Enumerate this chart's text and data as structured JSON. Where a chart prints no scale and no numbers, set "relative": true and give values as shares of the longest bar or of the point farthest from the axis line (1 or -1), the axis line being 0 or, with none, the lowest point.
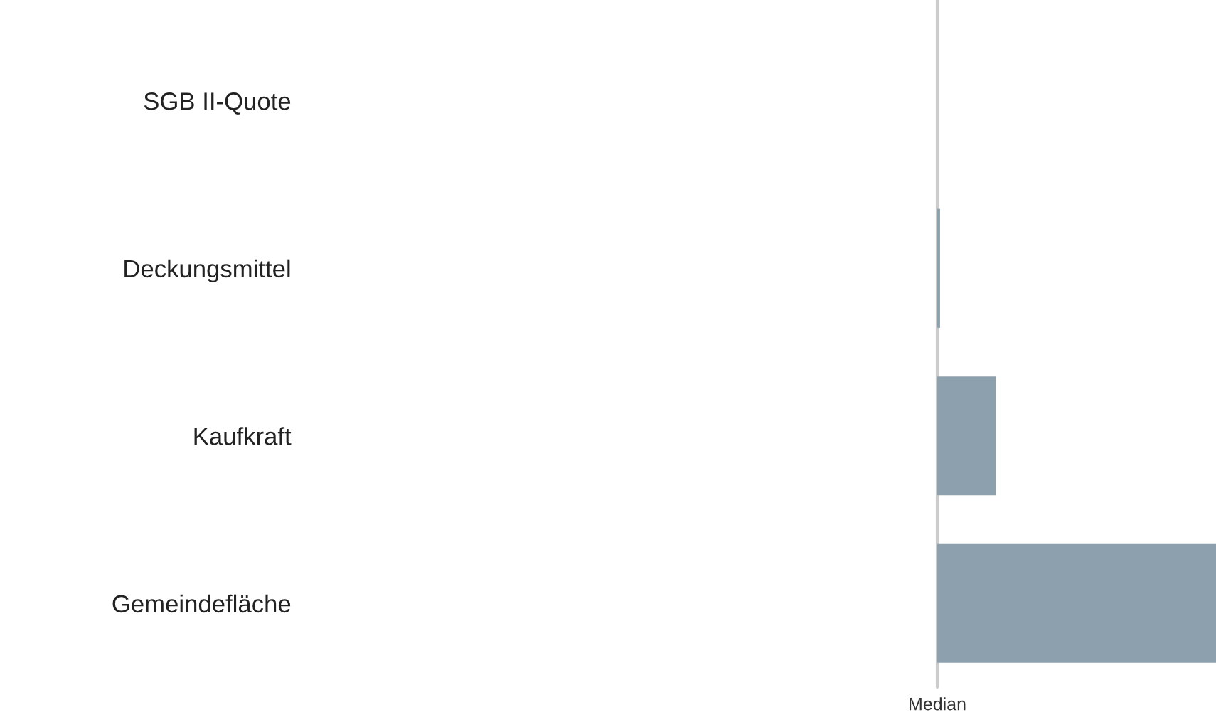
{
  "chart_data": {
    "type": "bar",
    "orientation": "horizontal",
    "relative": true,
    "categories": [
      "SGB II-Quote",
      "Deckungsmittel",
      "Kaufkraft",
      "Gemeindefläche"
    ],
    "values": [
      0,
      0.01,
      0.21,
      1
    ],
    "color": "#8ca0ad",
    "ref_lines": [
      {
        "axis": "x",
        "value": 0,
        "label": "Median",
        "color": "#cccccc"
      }
    ],
    "grid": false,
    "legend": false
  }
}
